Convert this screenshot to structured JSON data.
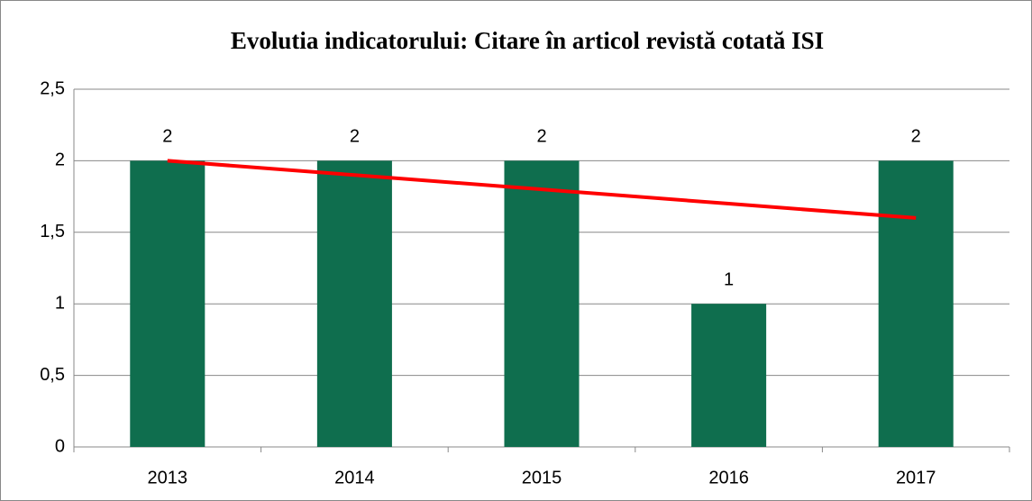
{
  "chart_data": {
    "type": "bar",
    "title": "Evolutia indicatorului: Citare în articol revistă cotată ISI",
    "categories": [
      "2013",
      "2014",
      "2015",
      "2016",
      "2017"
    ],
    "series": [
      {
        "color": "#0f6e4e",
        "values": [
          2,
          2,
          2,
          1,
          2
        ]
      }
    ],
    "trendline": {
      "color": "#ff0000",
      "values": [
        2.0,
        1.9,
        1.8,
        1.7,
        1.6
      ]
    },
    "ylim": [
      0,
      2.5
    ],
    "yticks": [
      0,
      {
        "value": 0.5,
        "label": "0,5"
      },
      1,
      {
        "value": 1.5,
        "label": "1,5"
      },
      2,
      {
        "value": 2.5,
        "label": "2,5"
      }
    ],
    "grid": true
  }
}
